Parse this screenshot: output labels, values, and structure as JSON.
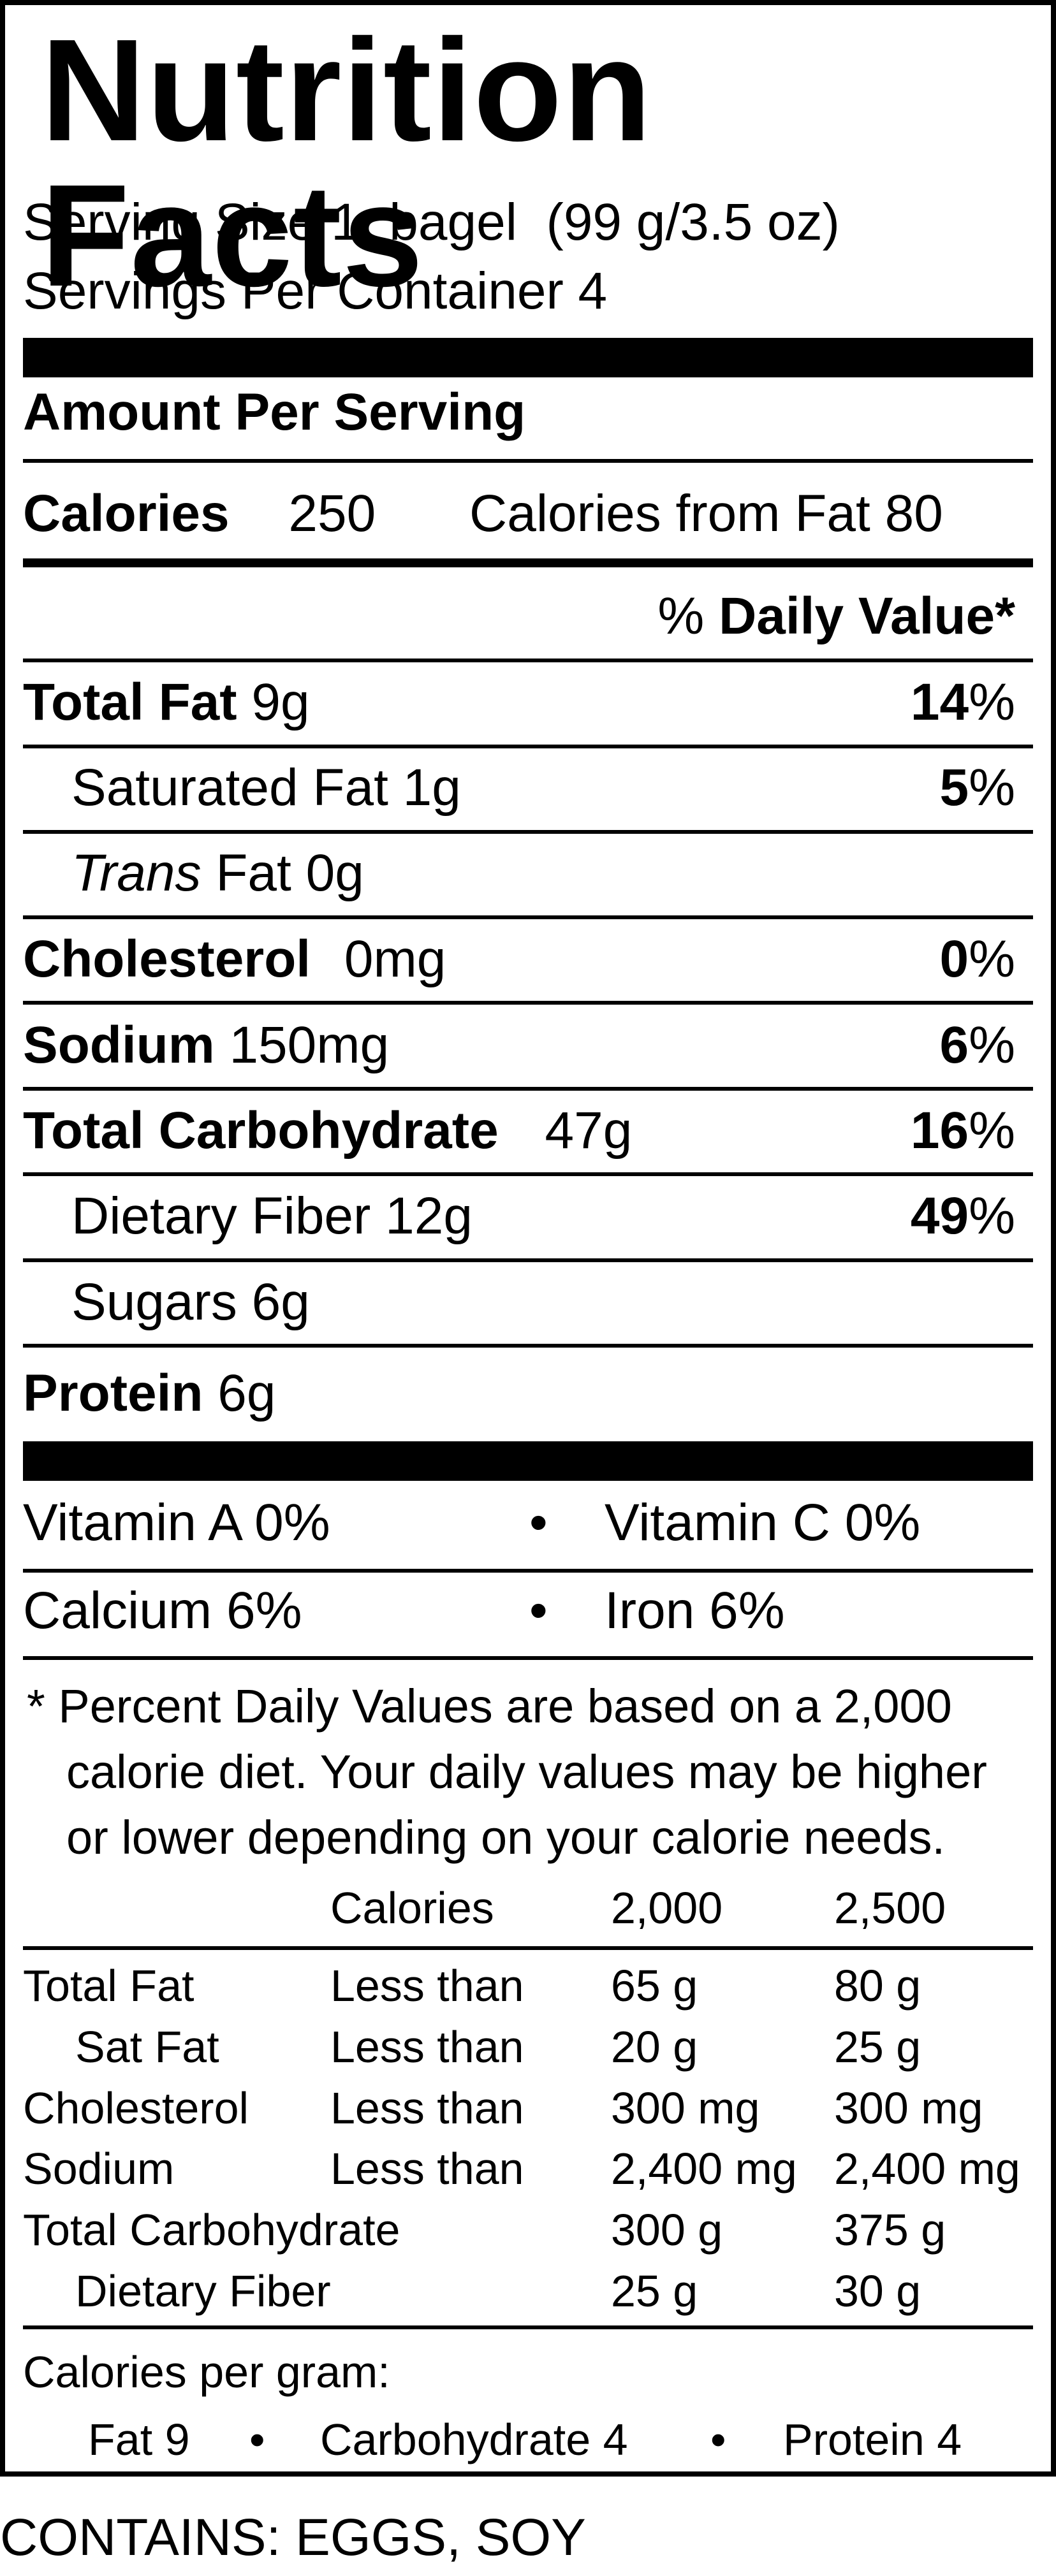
{
  "title": "Nutrition Facts",
  "serving": {
    "size_label": "Serving Size",
    "size_value": "1  bagel  (99 g/3.5 oz)",
    "per_container_label": "Servings Per Container",
    "per_container_value": "4"
  },
  "amount_per_serving": "Amount Per Serving",
  "calories": {
    "label": "Calories",
    "value": "250",
    "from_fat_label": "Calories from Fat",
    "from_fat_value": "80"
  },
  "daily_value_header": {
    "pct": "%",
    "text": "Daily Value*"
  },
  "nutrients": [
    {
      "label": "Total Fat",
      "amount": "9g",
      "pct": "14",
      "bold": true,
      "indent": false
    },
    {
      "label": "Saturated Fat",
      "amount": "1g",
      "pct": "5",
      "bold": false,
      "indent": true
    },
    {
      "label": "Fat",
      "amount": "0g",
      "prefix_italic": "Trans",
      "pct": "",
      "bold": false,
      "indent": true
    },
    {
      "label": "Cholesterol",
      "amount": "0mg",
      "pct": "0",
      "bold": true,
      "indent": false
    },
    {
      "label": "Sodium",
      "amount": "150mg",
      "pct": "6",
      "bold": true,
      "indent": false
    },
    {
      "label": "Total Carbohydrate",
      "amount": "47g",
      "pct": "16",
      "bold": true,
      "indent": false
    },
    {
      "label": "Dietary Fiber",
      "amount": "12g",
      "pct": "49",
      "bold": false,
      "indent": true
    },
    {
      "label": "Sugars",
      "amount": "6g",
      "pct": "",
      "bold": false,
      "indent": true
    },
    {
      "label": "Protein",
      "amount": "6g",
      "pct": "",
      "bold": true,
      "indent": false
    }
  ],
  "pct_sign": "%",
  "vitamins": {
    "row1": {
      "left_label": "Vitamin A",
      "left_value": "0%",
      "right_label": "Vitamin C",
      "right_value": "0%"
    },
    "row2": {
      "left_label": "Calcium",
      "left_value": "6%",
      "right_label": "Iron",
      "right_value": "6%"
    },
    "bullet": "•"
  },
  "footnote": {
    "line1": "* Percent Daily Values are based on a 2,000",
    "line2": "calorie diet. Your daily values may be higher",
    "line3": "or lower depending on your calorie needs."
  },
  "dv_table": {
    "header": [
      "Calories",
      "2,000",
      "2,500"
    ],
    "rows": [
      [
        "Total Fat",
        "Less than",
        "65 g",
        "80 g"
      ],
      [
        "Sat Fat",
        "Less than",
        "20 g",
        "25 g"
      ],
      [
        "Cholesterol",
        "Less than",
        "300 mg",
        "300 mg"
      ],
      [
        "Sodium",
        "Less than",
        "2,400 mg",
        "2,400 mg"
      ],
      [
        "Total Carbohydrate",
        "",
        "300 g",
        "375 g"
      ],
      [
        "Dietary Fiber",
        "",
        "25 g",
        "30 g"
      ]
    ]
  },
  "calories_per_gram": {
    "label": "Calories per gram:",
    "fat": "Fat 9",
    "carb": "Carbohydrate 4",
    "protein": "Protein 4",
    "bullet": "•"
  },
  "contains": "CONTAINS: EGGS, SOY"
}
